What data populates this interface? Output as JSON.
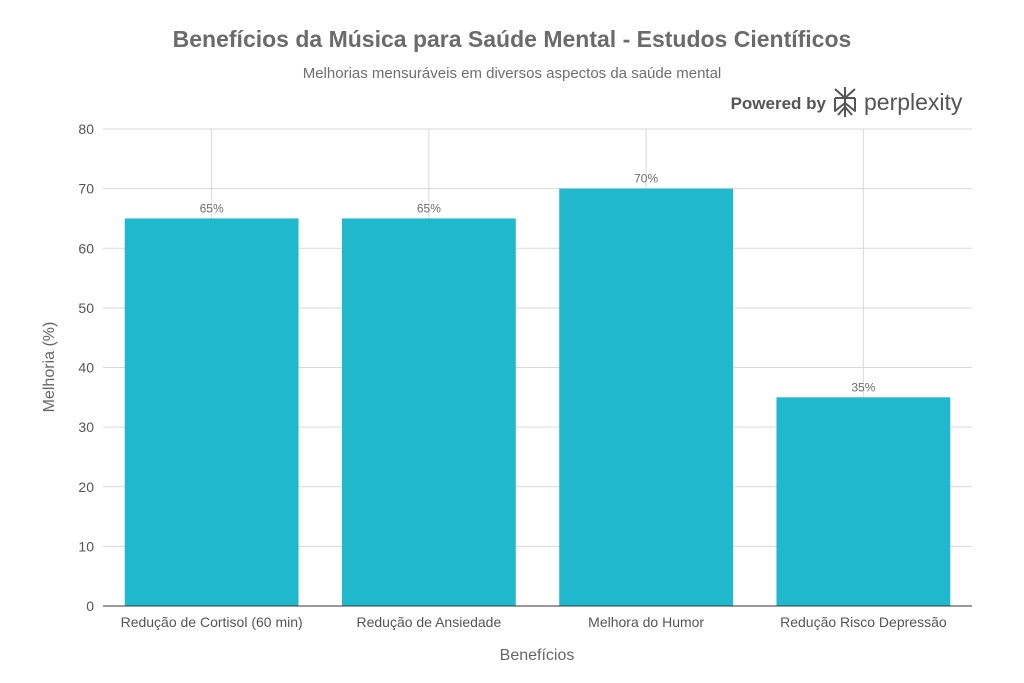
{
  "chart_data": {
    "type": "bar",
    "title": "Benefícios da Música para Saúde Mental - Estudos Científicos",
    "subtitle": "Melhorias mensuráveis em diversos aspectos da saúde mental",
    "xlabel": "Benefícios",
    "ylabel": "Melhoria (%)",
    "categories": [
      "Redução de Cortisol (60 min)",
      "Redução de Ansiedade",
      "Melhora do Humor",
      "Redução Risco Depressão"
    ],
    "values": [
      65,
      65,
      70,
      35
    ],
    "data_labels": [
      "65%",
      "65%",
      "70%",
      "35%"
    ],
    "ylim": [
      0,
      80
    ],
    "yticks": [
      0,
      10,
      20,
      30,
      40,
      50,
      60,
      70,
      80
    ],
    "grid": true,
    "bar_color": "#1FB8CD"
  },
  "branding": {
    "powered_by": "Powered by",
    "brand_name": "perplexity",
    "logo_icon": "perplexity-logo-icon"
  }
}
